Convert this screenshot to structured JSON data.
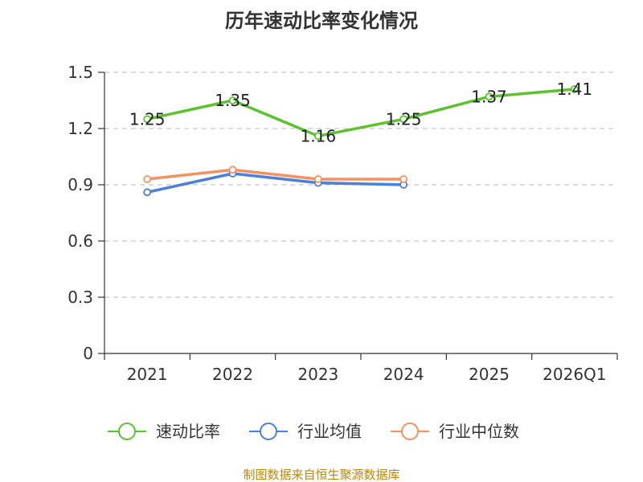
{
  "chart_data": {
    "type": "line",
    "title": "历年速动比率变化情况",
    "categories": [
      "2021",
      "2022",
      "2023",
      "2024",
      "2025",
      "2026Q1"
    ],
    "yticks": [
      "0",
      "0.3",
      "0.6",
      "0.9",
      "1.2",
      "1.5"
    ],
    "ylim": [
      0,
      1.5
    ],
    "grid": true,
    "legend_position": "bottom",
    "series": [
      {
        "name": "速动比率",
        "color": "#5cc22d",
        "values": [
          1.25,
          1.35,
          1.16,
          1.25,
          1.37,
          1.41
        ],
        "labels": [
          "1.25",
          "1.35",
          "1.16",
          "1.25",
          "1.37",
          "1.41"
        ]
      },
      {
        "name": "行业均值",
        "color": "#4a7fdc",
        "values": [
          0.86,
          0.96,
          0.91,
          0.9,
          null,
          null
        ]
      },
      {
        "name": "行业中位数",
        "color": "#f59160",
        "values": [
          0.93,
          0.98,
          0.93,
          0.93,
          null,
          null
        ]
      }
    ]
  },
  "source": "制图数据来自恒生聚源数据库"
}
